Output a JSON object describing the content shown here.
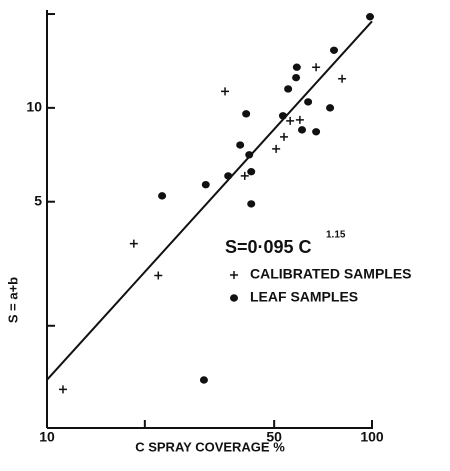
{
  "chart_data": {
    "type": "scatter",
    "x_label": "C   SPRAY COVERAGE   %",
    "y_label": "S = a+b",
    "xscale": "log",
    "yscale": "log",
    "xlim": [
      10,
      100
    ],
    "ylim": [
      0.94,
      20.3
    ],
    "xticks": [
      10,
      50,
      100
    ],
    "minor_xticks": [
      20
    ],
    "yticks": [
      5,
      10
    ],
    "minor_yticks": [
      2,
      20
    ],
    "fit": {
      "equation": "S=0·095 C",
      "exponent_text": "1.15",
      "coefficient": 0.095,
      "power": 1.15
    },
    "series": [
      {
        "name": "CALIBRATED SAMPLES",
        "marker": "plus",
        "color": "#111111",
        "x": [
          11.2,
          18.5,
          22.0,
          35.3,
          40.6,
          50.7,
          53.6,
          56.0,
          60.0,
          67.3,
          80.9
        ],
        "values": [
          1.25,
          3.67,
          2.9,
          11.3,
          6.05,
          7.39,
          8.07,
          9.08,
          9.15,
          13.5,
          12.4
        ]
      },
      {
        "name": "LEAF SAMPLES",
        "marker": "circle",
        "color": "#111111",
        "x": [
          22.6,
          30.8,
          30.4,
          36.1,
          39.3,
          41.0,
          41.9,
          42.5,
          42.5,
          53.2,
          55.2,
          58.4,
          58.7,
          60.9,
          63.6,
          67.3,
          74.3,
          76.4,
          98.6
        ],
        "values": [
          5.22,
          5.67,
          1.34,
          6.05,
          7.6,
          9.57,
          7.07,
          6.24,
          4.92,
          9.43,
          11.5,
          12.5,
          13.5,
          8.5,
          10.45,
          8.38,
          10.0,
          15.3,
          19.6
        ]
      }
    ]
  }
}
